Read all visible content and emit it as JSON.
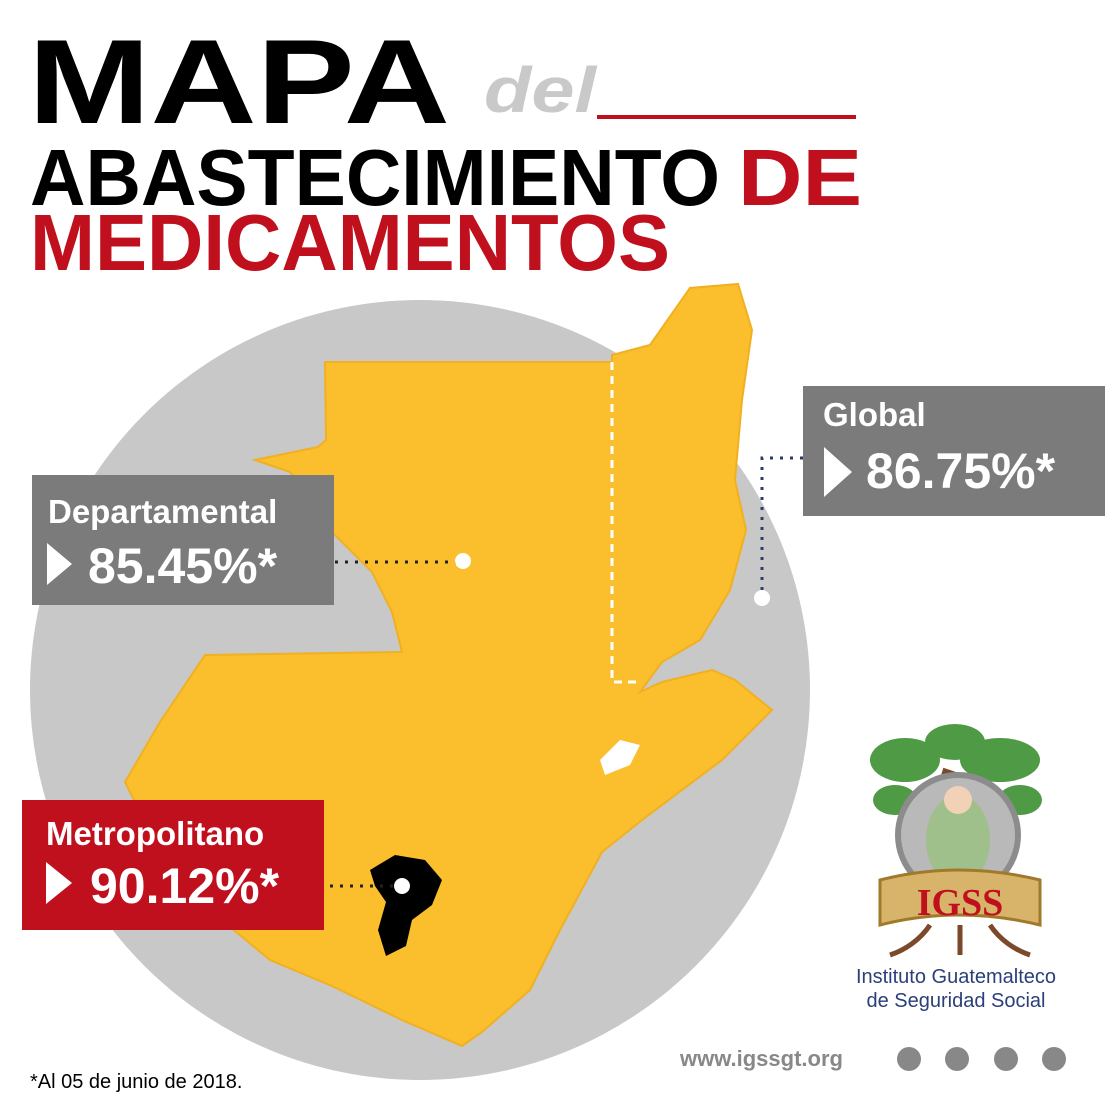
{
  "header": {
    "title_1": "MAPA",
    "title_connector": "del",
    "title_2": "ABASTECIMIENTO",
    "title_2_accent": "DE",
    "title_3": "MEDICAMENTOS"
  },
  "regions": [
    {
      "name": "Departamental",
      "value": "85.45%*"
    },
    {
      "name": "Global",
      "value": "86.75%*"
    },
    {
      "name": "Metropolitano",
      "value": "90.12%*"
    }
  ],
  "logo": {
    "acronym": "IGSS",
    "line_1": "Instituto Guatemalteco",
    "line_2": "de Seguridad Social"
  },
  "footer": {
    "website": "www.igssgt.org",
    "note": "*Al 05 de junio de 2018."
  }
}
